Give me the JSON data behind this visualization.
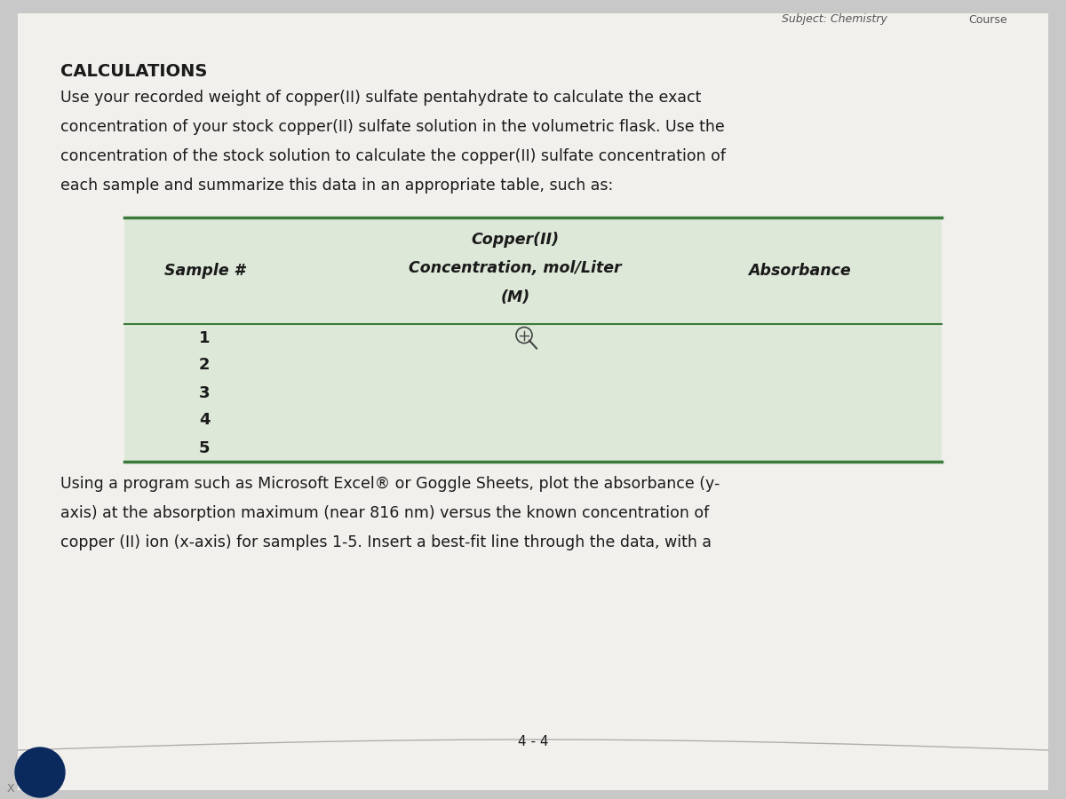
{
  "bg_color": "#c8c8c8",
  "page_bg": "#f2f0ec",
  "title": "CALCULATIONS",
  "para1_lines": [
    "Use your recorded weight of copper(II) sulfate pentahydrate to calculate the exact",
    "concentration of your stock copper(II) sulfate solution in the volumetric flask. Use the",
    "concentration of the stock solution to calculate the copper(II) sulfate concentration of",
    "each sample and summarize this data in an appropriate table, such as:"
  ],
  "col1_header": "Sample #",
  "col2_header_line1": "Copper(II)",
  "col2_header_line2": "Concentration, mol/Liter",
  "col2_header_line3": "(M)",
  "col3_header": "Absorbance",
  "rows": [
    "1",
    "2",
    "3",
    "4",
    "5"
  ],
  "para2_lines": [
    "Using a program such as Microsoft Excel® or Goggle Sheets, plot the absorbance (y-",
    "axis) at the absorption maximum (near 816 nm) versus the known concentration of",
    "copper (II) ion (x-axis) for samples 1-5. Insert a best-fit line through the data, with a"
  ],
  "page_number": "4 - 4",
  "header_right1": "Subject: Chemistry",
  "header_right2": "Course",
  "table_line_color": "#3a7a3a",
  "table_bg_color": "#dde8d8",
  "text_color": "#1a1a1a",
  "font_size_title": 14,
  "font_size_body": 12.5,
  "font_size_table_header": 12.5,
  "font_size_table_row": 13,
  "font_size_header": 9,
  "font_size_page": 11
}
